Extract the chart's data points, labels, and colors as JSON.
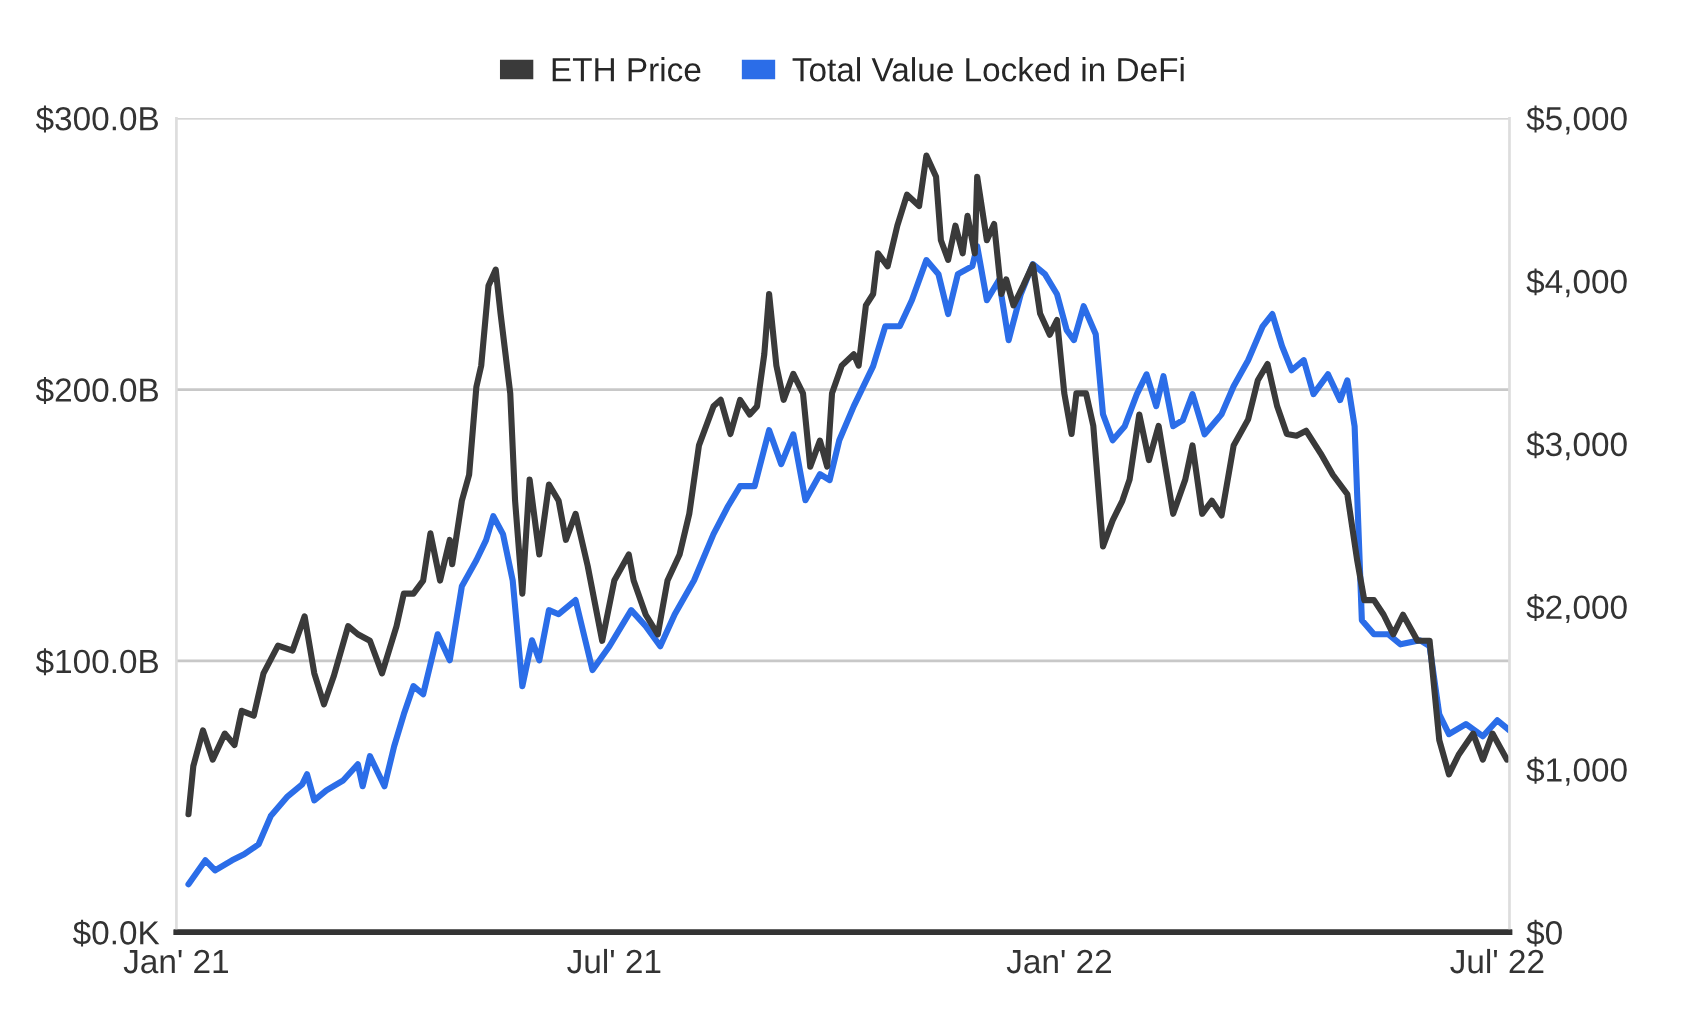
{
  "chart_data": {
    "type": "line",
    "xlim": [
      "2021-01-01",
      "2022-07-06"
    ],
    "xticks": [
      {
        "value": "2021-01-01",
        "label": "Jan' 21"
      },
      {
        "value": "2021-07-01",
        "label": "Jul' 21"
      },
      {
        "value": "2022-01-01",
        "label": "Jan' 22"
      },
      {
        "value": "2022-07-01",
        "label": "Jul' 22"
      }
    ],
    "ylim": [
      0,
      300
    ],
    "yticks": [
      {
        "value": 0,
        "label": "$0.0K"
      },
      {
        "value": 100,
        "label": "$100.0B"
      },
      {
        "value": 200,
        "label": "$200.0B"
      },
      {
        "value": 300,
        "label": "$300.0B"
      }
    ],
    "y2lim": [
      0,
      5000
    ],
    "y2ticks": [
      {
        "value": 0,
        "label": "$0"
      },
      {
        "value": 1000,
        "label": "$1,000"
      },
      {
        "value": 2000,
        "label": "$2,000"
      },
      {
        "value": 3000,
        "label": "$3,000"
      },
      {
        "value": 4000,
        "label": "$4,000"
      },
      {
        "value": 5000,
        "label": "$5,000"
      }
    ],
    "grid": "y",
    "legend": "top",
    "marker": "none",
    "line_style": "solid",
    "series": [
      {
        "name": "ETH Price",
        "color": "#3a3a3a",
        "axis": "y2",
        "x": [
          "2021-01-06",
          "2021-01-08",
          "2021-01-12",
          "2021-01-16",
          "2021-01-21",
          "2021-01-25",
          "2021-01-28",
          "2021-02-02",
          "2021-02-06",
          "2021-02-12",
          "2021-02-18",
          "2021-02-23",
          "2021-02-27",
          "2021-03-03",
          "2021-03-07",
          "2021-03-13",
          "2021-03-17",
          "2021-03-22",
          "2021-03-27",
          "2021-04-02",
          "2021-04-05",
          "2021-04-09",
          "2021-04-13",
          "2021-04-16",
          "2021-04-20",
          "2021-04-24",
          "2021-04-25",
          "2021-04-29",
          "2021-05-02",
          "2021-05-05",
          "2021-05-07",
          "2021-05-10",
          "2021-05-13",
          "2021-05-15",
          "2021-05-19",
          "2021-05-21",
          "2021-05-24",
          "2021-05-27",
          "2021-05-31",
          "2021-06-04",
          "2021-06-08",
          "2021-06-11",
          "2021-06-15",
          "2021-06-20",
          "2021-06-26",
          "2021-07-01",
          "2021-07-07",
          "2021-07-09",
          "2021-07-14",
          "2021-07-19",
          "2021-07-23",
          "2021-07-28",
          "2021-08-01",
          "2021-08-05",
          "2021-08-11",
          "2021-08-14",
          "2021-08-18",
          "2021-08-22",
          "2021-08-26",
          "2021-08-29",
          "2021-09-01",
          "2021-09-03",
          "2021-09-06",
          "2021-09-09",
          "2021-09-13",
          "2021-09-17",
          "2021-09-20",
          "2021-09-24",
          "2021-09-27",
          "2021-09-29",
          "2021-10-03",
          "2021-10-08",
          "2021-10-10",
          "2021-10-13",
          "2021-10-16",
          "2021-10-18",
          "2021-10-22",
          "2021-10-26",
          "2021-10-30",
          "2021-11-04",
          "2021-11-07",
          "2021-11-11",
          "2021-11-13",
          "2021-11-16",
          "2021-11-19",
          "2021-11-22",
          "2021-11-24",
          "2021-11-27",
          "2021-11-28",
          "2021-12-02",
          "2021-12-05",
          "2021-12-08",
          "2021-12-10",
          "2021-12-13",
          "2021-12-17",
          "2021-12-21",
          "2021-12-24",
          "2021-12-28",
          "2021-12-31",
          "2022-01-03",
          "2022-01-06",
          "2022-01-08",
          "2022-01-12",
          "2022-01-15",
          "2022-01-19",
          "2022-01-23",
          "2022-01-27",
          "2022-01-30",
          "2022-02-03",
          "2022-02-07",
          "2022-02-11",
          "2022-02-17",
          "2022-02-22",
          "2022-02-25",
          "2022-03-01",
          "2022-03-05",
          "2022-03-09",
          "2022-03-14",
          "2022-03-20",
          "2022-03-24",
          "2022-03-28",
          "2022-04-01",
          "2022-04-05",
          "2022-04-09",
          "2022-04-13",
          "2022-04-19",
          "2022-04-24",
          "2022-04-30",
          "2022-05-04",
          "2022-05-07",
          "2022-05-11",
          "2022-05-15",
          "2022-05-19",
          "2022-05-23",
          "2022-05-29",
          "2022-06-03",
          "2022-06-07",
          "2022-06-11",
          "2022-06-15",
          "2022-06-21",
          "2022-06-25",
          "2022-06-29",
          "2022-07-05"
        ],
        "values": [
          725,
          1020,
          1240,
          1060,
          1220,
          1150,
          1360,
          1330,
          1590,
          1760,
          1730,
          1940,
          1590,
          1400,
          1570,
          1880,
          1830,
          1790,
          1590,
          1880,
          2080,
          2080,
          2160,
          2450,
          2160,
          2410,
          2260,
          2650,
          2810,
          3350,
          3480,
          3970,
          4070,
          3800,
          3310,
          2650,
          2080,
          2780,
          2320,
          2750,
          2650,
          2410,
          2570,
          2250,
          1790,
          2160,
          2320,
          2160,
          1950,
          1830,
          2160,
          2320,
          2570,
          2990,
          3230,
          3270,
          3060,
          3270,
          3180,
          3230,
          3550,
          3920,
          3480,
          3270,
          3430,
          3310,
          2860,
          3020,
          2860,
          3310,
          3480,
          3550,
          3480,
          3850,
          3920,
          4170,
          4090,
          4340,
          4530,
          4460,
          4770,
          4640,
          4250,
          4130,
          4340,
          4170,
          4400,
          4170,
          4640,
          4250,
          4350,
          3920,
          4010,
          3850,
          3970,
          4100,
          3800,
          3670,
          3760,
          3310,
          3060,
          3310,
          3310,
          3110,
          2370,
          2530,
          2650,
          2780,
          3180,
          2900,
          3110,
          2570,
          2780,
          2990,
          2570,
          2650,
          2560,
          2990,
          3150,
          3390,
          3490,
          3230,
          3060,
          3050,
          3080,
          2940,
          2810,
          2690,
          2290,
          2040,
          2040,
          1950,
          1830,
          1950,
          1790,
          1790,
          1180,
          970,
          1090,
          1220,
          1060,
          1220,
          1060
        ]
      },
      {
        "name": "Total Value Locked in DeFi",
        "color": "#2b6de8",
        "x": [
          "2021-01-06",
          "2021-01-13",
          "2021-01-17",
          "2021-01-24",
          "2021-01-29",
          "2021-02-04",
          "2021-02-09",
          "2021-02-16",
          "2021-02-22",
          "2021-02-24",
          "2021-02-27",
          "2021-03-04",
          "2021-03-11",
          "2021-03-17",
          "2021-03-19",
          "2021-03-22",
          "2021-03-28",
          "2021-04-01",
          "2021-04-05",
          "2021-04-09",
          "2021-04-13",
          "2021-04-19",
          "2021-04-24",
          "2021-04-29",
          "2021-05-05",
          "2021-05-09",
          "2021-05-12",
          "2021-05-16",
          "2021-05-20",
          "2021-05-24",
          "2021-05-28",
          "2021-05-31",
          "2021-06-04",
          "2021-06-08",
          "2021-06-15",
          "2021-06-22",
          "2021-06-29",
          "2021-07-04",
          "2021-07-08",
          "2021-07-14",
          "2021-07-20",
          "2021-07-26",
          "2021-08-03",
          "2021-08-11",
          "2021-08-17",
          "2021-08-22",
          "2021-08-28",
          "2021-09-03",
          "2021-09-08",
          "2021-09-13",
          "2021-09-18",
          "2021-09-24",
          "2021-09-28",
          "2021-10-02",
          "2021-10-08",
          "2021-10-16",
          "2021-10-21",
          "2021-10-27",
          "2021-11-01",
          "2021-11-07",
          "2021-11-12",
          "2021-11-16",
          "2021-11-20",
          "2021-11-26",
          "2021-11-28",
          "2021-12-02",
          "2021-12-07",
          "2021-12-11",
          "2021-12-16",
          "2021-12-21",
          "2021-12-26",
          "2021-12-31",
          "2022-01-04",
          "2022-01-07",
          "2022-01-11",
          "2022-01-16",
          "2022-01-19",
          "2022-01-23",
          "2022-01-28",
          "2022-02-02",
          "2022-02-06",
          "2022-02-10",
          "2022-02-13",
          "2022-02-17",
          "2022-02-21",
          "2022-02-25",
          "2022-03-02",
          "2022-03-09",
          "2022-03-14",
          "2022-03-20",
          "2022-03-26",
          "2022-03-30",
          "2022-04-03",
          "2022-04-07",
          "2022-04-12",
          "2022-04-16",
          "2022-04-22",
          "2022-04-27",
          "2022-04-30",
          "2022-05-03",
          "2022-05-06",
          "2022-05-11",
          "2022-05-17",
          "2022-05-22",
          "2022-05-30",
          "2022-06-03",
          "2022-06-07",
          "2022-06-11",
          "2022-06-18",
          "2022-06-25",
          "2022-07-01",
          "2022-07-06"
        ],
        "values": [
          17.7,
          26.5,
          22.8,
          26.5,
          28.7,
          32.4,
          42.8,
          50.1,
          54.5,
          58.2,
          48.6,
          52.3,
          56.0,
          61.9,
          53.8,
          64.9,
          53.8,
          68.5,
          80.3,
          90.7,
          87.7,
          109.8,
          100.2,
          127.5,
          137.1,
          144.5,
          153.3,
          146.7,
          129.7,
          90.7,
          107.6,
          100.2,
          118.7,
          117.2,
          122.4,
          96.6,
          105.4,
          112.8,
          118.7,
          112.8,
          105.4,
          117.2,
          129.7,
          146.7,
          157.0,
          164.4,
          164.4,
          185.0,
          172.5,
          183.5,
          159.2,
          168.8,
          166.6,
          181.3,
          193.9,
          208.6,
          223.3,
          223.3,
          232.9,
          247.7,
          242.5,
          227.8,
          242.5,
          245.5,
          252.8,
          232.9,
          240.3,
          218.2,
          235.1,
          246.2,
          242.5,
          235.1,
          221.9,
          218.2,
          230.7,
          220.4,
          190.9,
          181.3,
          186.5,
          198.3,
          205.6,
          193.9,
          204.9,
          186.5,
          188.7,
          198.3,
          183.5,
          190.9,
          201.2,
          210.8,
          223.3,
          227.8,
          216.0,
          207.1,
          210.8,
          198.3,
          205.6,
          196.1,
          203.4,
          186.5,
          115.0,
          109.8,
          109.8,
          106.1,
          107.6,
          105.4,
          80.3,
          73.0,
          76.7,
          72.2,
          78.1,
          74.4
        ]
      }
    ]
  }
}
